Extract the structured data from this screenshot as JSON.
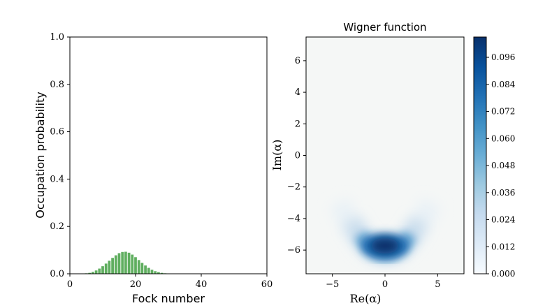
{
  "chart_data": [
    {
      "type": "bar",
      "xlabel": "Fock number",
      "ylabel": "Occupation probability",
      "xlim": [
        0,
        60
      ],
      "ylim": [
        0,
        1.0
      ],
      "xticks": [
        "0",
        "20",
        "40",
        "60"
      ],
      "yticks": [
        "0.0",
        "0.2",
        "0.4",
        "0.6",
        "0.8",
        "1.0"
      ],
      "bar_color": "#5fae5f",
      "x": [
        5,
        6,
        7,
        8,
        9,
        10,
        11,
        12,
        13,
        14,
        15,
        16,
        17,
        18,
        19,
        20,
        21,
        22,
        23,
        24,
        25,
        26,
        27,
        28,
        29,
        30
      ],
      "values": [
        0.002,
        0.004,
        0.008,
        0.014,
        0.022,
        0.032,
        0.043,
        0.055,
        0.067,
        0.078,
        0.087,
        0.092,
        0.093,
        0.089,
        0.081,
        0.07,
        0.058,
        0.046,
        0.035,
        0.025,
        0.017,
        0.011,
        0.007,
        0.004,
        0.002,
        0.001
      ]
    },
    {
      "type": "heatmap",
      "title": "Wigner function",
      "xlabel": "Re(α)",
      "ylabel": "Im(α)",
      "xlim": [
        -7.5,
        7.5
      ],
      "ylim": [
        -7.5,
        7.5
      ],
      "xticks": [
        "−5",
        "0",
        "5"
      ],
      "yticks": [
        "6",
        "4",
        "2",
        "0",
        "−2",
        "−4",
        "−6"
      ],
      "colormap": "Blues",
      "colorbar_ticks": [
        "0.000",
        "0.012",
        "0.024",
        "0.036",
        "0.048",
        "0.060",
        "0.072",
        "0.084",
        "0.096"
      ],
      "colorbar_range": [
        0.0,
        0.105
      ],
      "peak_center": [
        0,
        -5.9
      ],
      "arc_radius": 6.0,
      "background_color": "#f5f7f6"
    }
  ]
}
